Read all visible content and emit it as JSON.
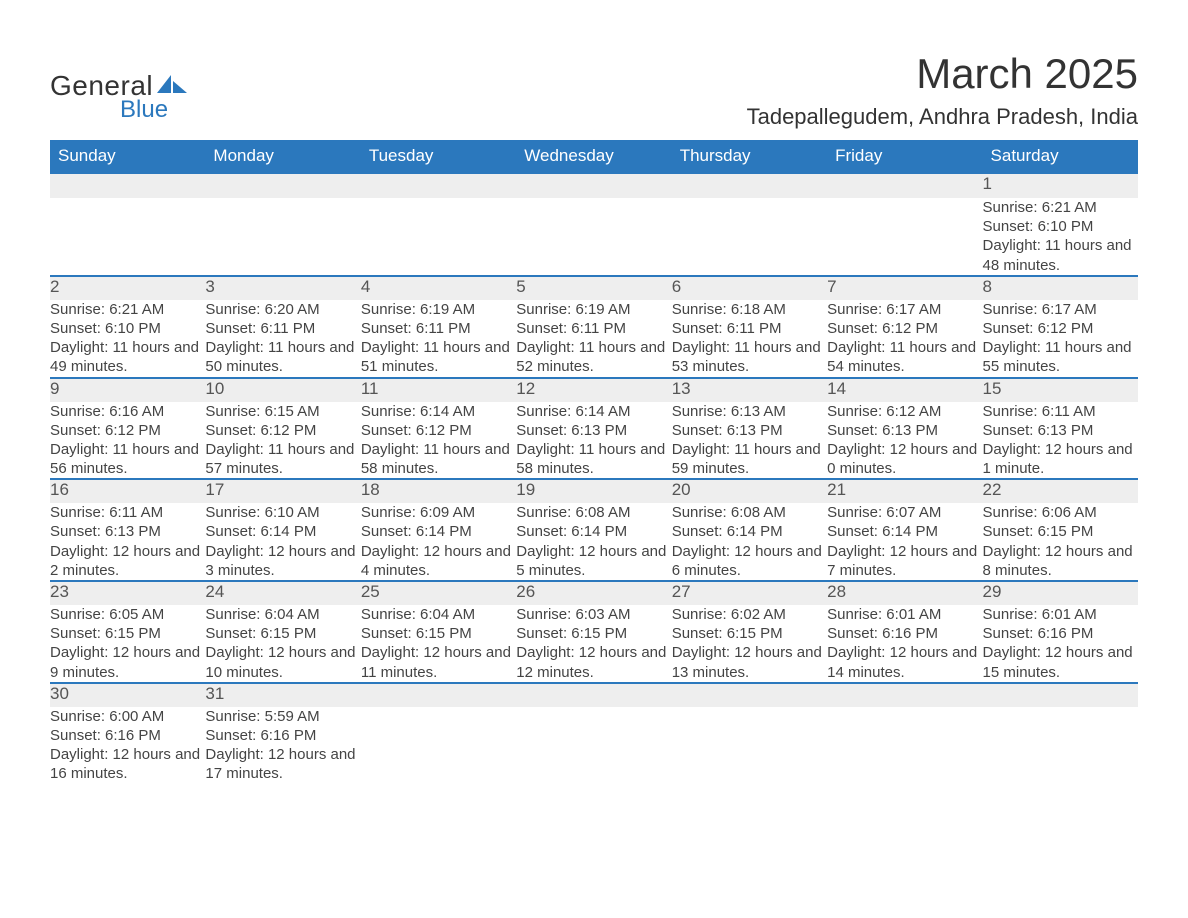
{
  "logo": {
    "word1": "General",
    "word2": "Blue",
    "triColor": "#2b78bd",
    "textColor": "#333333"
  },
  "title": "March 2025",
  "location": "Tadepallegudem, Andhra Pradesh, India",
  "style": {
    "headerBg": "#2b78bd",
    "headerText": "#ffffff",
    "dayBarBg": "#eeeeee",
    "rowBorder": "#2b78bd",
    "bodyText": "#444444",
    "pageBg": "#ffffff",
    "titleFontSize": 42,
    "locationFontSize": 22,
    "headerFontSize": 17,
    "cellFontSize": 15
  },
  "weekdays": [
    "Sunday",
    "Monday",
    "Tuesday",
    "Wednesday",
    "Thursday",
    "Friday",
    "Saturday"
  ],
  "labels": {
    "sunrise": "Sunrise:",
    "sunset": "Sunset:",
    "daylight": "Daylight:"
  },
  "weeks": [
    [
      null,
      null,
      null,
      null,
      null,
      null,
      {
        "n": "1",
        "sr": "6:21 AM",
        "ss": "6:10 PM",
        "dl": "11 hours and 48 minutes."
      }
    ],
    [
      {
        "n": "2",
        "sr": "6:21 AM",
        "ss": "6:10 PM",
        "dl": "11 hours and 49 minutes."
      },
      {
        "n": "3",
        "sr": "6:20 AM",
        "ss": "6:11 PM",
        "dl": "11 hours and 50 minutes."
      },
      {
        "n": "4",
        "sr": "6:19 AM",
        "ss": "6:11 PM",
        "dl": "11 hours and 51 minutes."
      },
      {
        "n": "5",
        "sr": "6:19 AM",
        "ss": "6:11 PM",
        "dl": "11 hours and 52 minutes."
      },
      {
        "n": "6",
        "sr": "6:18 AM",
        "ss": "6:11 PM",
        "dl": "11 hours and 53 minutes."
      },
      {
        "n": "7",
        "sr": "6:17 AM",
        "ss": "6:12 PM",
        "dl": "11 hours and 54 minutes."
      },
      {
        "n": "8",
        "sr": "6:17 AM",
        "ss": "6:12 PM",
        "dl": "11 hours and 55 minutes."
      }
    ],
    [
      {
        "n": "9",
        "sr": "6:16 AM",
        "ss": "6:12 PM",
        "dl": "11 hours and 56 minutes."
      },
      {
        "n": "10",
        "sr": "6:15 AM",
        "ss": "6:12 PM",
        "dl": "11 hours and 57 minutes."
      },
      {
        "n": "11",
        "sr": "6:14 AM",
        "ss": "6:12 PM",
        "dl": "11 hours and 58 minutes."
      },
      {
        "n": "12",
        "sr": "6:14 AM",
        "ss": "6:13 PM",
        "dl": "11 hours and 58 minutes."
      },
      {
        "n": "13",
        "sr": "6:13 AM",
        "ss": "6:13 PM",
        "dl": "11 hours and 59 minutes."
      },
      {
        "n": "14",
        "sr": "6:12 AM",
        "ss": "6:13 PM",
        "dl": "12 hours and 0 minutes."
      },
      {
        "n": "15",
        "sr": "6:11 AM",
        "ss": "6:13 PM",
        "dl": "12 hours and 1 minute."
      }
    ],
    [
      {
        "n": "16",
        "sr": "6:11 AM",
        "ss": "6:13 PM",
        "dl": "12 hours and 2 minutes."
      },
      {
        "n": "17",
        "sr": "6:10 AM",
        "ss": "6:14 PM",
        "dl": "12 hours and 3 minutes."
      },
      {
        "n": "18",
        "sr": "6:09 AM",
        "ss": "6:14 PM",
        "dl": "12 hours and 4 minutes."
      },
      {
        "n": "19",
        "sr": "6:08 AM",
        "ss": "6:14 PM",
        "dl": "12 hours and 5 minutes."
      },
      {
        "n": "20",
        "sr": "6:08 AM",
        "ss": "6:14 PM",
        "dl": "12 hours and 6 minutes."
      },
      {
        "n": "21",
        "sr": "6:07 AM",
        "ss": "6:14 PM",
        "dl": "12 hours and 7 minutes."
      },
      {
        "n": "22",
        "sr": "6:06 AM",
        "ss": "6:15 PM",
        "dl": "12 hours and 8 minutes."
      }
    ],
    [
      {
        "n": "23",
        "sr": "6:05 AM",
        "ss": "6:15 PM",
        "dl": "12 hours and 9 minutes."
      },
      {
        "n": "24",
        "sr": "6:04 AM",
        "ss": "6:15 PM",
        "dl": "12 hours and 10 minutes."
      },
      {
        "n": "25",
        "sr": "6:04 AM",
        "ss": "6:15 PM",
        "dl": "12 hours and 11 minutes."
      },
      {
        "n": "26",
        "sr": "6:03 AM",
        "ss": "6:15 PM",
        "dl": "12 hours and 12 minutes."
      },
      {
        "n": "27",
        "sr": "6:02 AM",
        "ss": "6:15 PM",
        "dl": "12 hours and 13 minutes."
      },
      {
        "n": "28",
        "sr": "6:01 AM",
        "ss": "6:16 PM",
        "dl": "12 hours and 14 minutes."
      },
      {
        "n": "29",
        "sr": "6:01 AM",
        "ss": "6:16 PM",
        "dl": "12 hours and 15 minutes."
      }
    ],
    [
      {
        "n": "30",
        "sr": "6:00 AM",
        "ss": "6:16 PM",
        "dl": "12 hours and 16 minutes."
      },
      {
        "n": "31",
        "sr": "5:59 AM",
        "ss": "6:16 PM",
        "dl": "12 hours and 17 minutes."
      },
      null,
      null,
      null,
      null,
      null
    ]
  ]
}
